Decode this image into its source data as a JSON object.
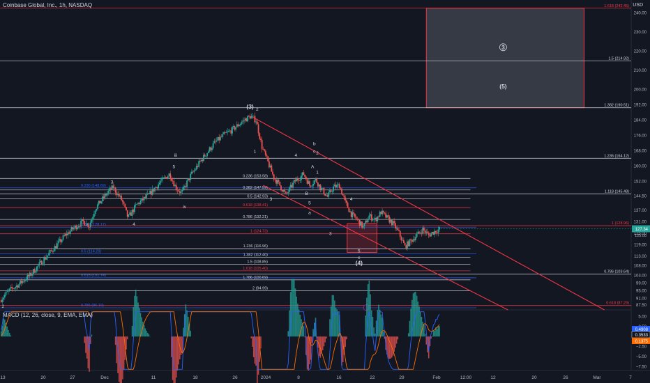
{
  "header": {
    "symbol_title": "Coinbase Global, Inc., 1h, NASDAQ",
    "currency": "USD",
    "macd_title": "MACD (12, 26, close, 9, EMA, EMA)"
  },
  "colors": {
    "background": "#131722",
    "fib_white": "#d1d4dc",
    "fib_red": "#f23645",
    "fib_blue": "#2962ff",
    "up_candle": "#26a69a",
    "down_candle": "#ef5350",
    "trendline": "#f23645",
    "macd_line": "#2962ff",
    "signal_line": "#ff6d00"
  },
  "chart_data": {
    "type": "candlestick",
    "title": "Coinbase Global, Inc., 1h, NASDAQ",
    "y_axis": {
      "unit": "USD",
      "ylim": [
        85,
        246
      ],
      "ticks": [
        87.5,
        91.0,
        95.0,
        99.0,
        103.0,
        108.0,
        113.0,
        119.0,
        125.0,
        131.0,
        137.0,
        144.5,
        152.0,
        160.0,
        168.0,
        176.0,
        184.0,
        192.0,
        200.0,
        210.0,
        220.0,
        230.0,
        240.0
      ],
      "tick_labels": [
        "87.50",
        "91.00",
        "95.00",
        "99.00",
        "103.00",
        "108.00",
        "113.00",
        "119.00",
        "125.00",
        "131.00",
        "137.00",
        "144.50",
        "152.00",
        "160.00",
        "168.00",
        "176.00",
        "184.00",
        "192.00",
        "200.00",
        "210.00",
        "220.00",
        "230.00",
        "240.00"
      ]
    },
    "x_axis": {
      "tick_labels": [
        "13",
        "20",
        "27",
        "Dec",
        "11",
        "18",
        "26",
        "2024",
        "8",
        "16",
        "22",
        "29",
        "Feb",
        "12:00",
        "12",
        "20",
        "26",
        "Mar",
        "7"
      ]
    },
    "current_price": {
      "value": 127.34,
      "label": "127.34",
      "secondary_label": "125.00"
    },
    "price_path": [
      {
        "t": 0,
        "p": 90
      },
      {
        "t": 1.5,
        "p": 95
      },
      {
        "t": 3,
        "p": 98
      },
      {
        "t": 5,
        "p": 103
      },
      {
        "t": 7,
        "p": 110
      },
      {
        "t": 9,
        "p": 117
      },
      {
        "t": 11,
        "p": 124
      },
      {
        "t": 12.5,
        "p": 128
      },
      {
        "t": 14,
        "p": 131
      },
      {
        "t": 15,
        "p": 129
      },
      {
        "t": 16,
        "p": 138
      },
      {
        "t": 18,
        "p": 146
      },
      {
        "t": 19,
        "p": 149
      },
      {
        "t": 20.5,
        "p": 142
      },
      {
        "t": 21.5,
        "p": 133
      },
      {
        "t": 23,
        "p": 140
      },
      {
        "t": 25,
        "p": 145
      },
      {
        "t": 27,
        "p": 152
      },
      {
        "t": 28.5,
        "p": 156
      },
      {
        "t": 29.5,
        "p": 149
      },
      {
        "t": 30.5,
        "p": 146
      },
      {
        "t": 32,
        "p": 155
      },
      {
        "t": 34,
        "p": 164
      },
      {
        "t": 36,
        "p": 172
      },
      {
        "t": 37.5,
        "p": 176
      },
      {
        "t": 39,
        "p": 179
      },
      {
        "t": 41,
        "p": 184
      },
      {
        "t": 42,
        "p": 186
      },
      {
        "t": 43,
        "p": 184
      },
      {
        "t": 44,
        "p": 170
      },
      {
        "t": 45,
        "p": 162
      },
      {
        "t": 46,
        "p": 154
      },
      {
        "t": 47,
        "p": 150
      },
      {
        "t": 48,
        "p": 145
      },
      {
        "t": 49.5,
        "p": 152
      },
      {
        "t": 51,
        "p": 156
      },
      {
        "t": 52,
        "p": 150
      },
      {
        "t": 53,
        "p": 153
      },
      {
        "t": 54,
        "p": 148
      },
      {
        "t": 55,
        "p": 144
      },
      {
        "t": 56,
        "p": 149
      },
      {
        "t": 57,
        "p": 150
      },
      {
        "t": 58,
        "p": 141
      },
      {
        "t": 59,
        "p": 135
      },
      {
        "t": 60,
        "p": 132
      },
      {
        "t": 61,
        "p": 128
      },
      {
        "t": 62,
        "p": 134
      },
      {
        "t": 63,
        "p": 132
      },
      {
        "t": 64,
        "p": 136
      },
      {
        "t": 65,
        "p": 133
      },
      {
        "t": 66,
        "p": 130
      },
      {
        "t": 67,
        "p": 125
      },
      {
        "t": 68,
        "p": 118
      },
      {
        "t": 69,
        "p": 121
      },
      {
        "t": 70,
        "p": 124
      },
      {
        "t": 71,
        "p": 127
      },
      {
        "t": 72,
        "p": 124
      },
      {
        "t": 73,
        "p": 126
      },
      {
        "t": 74,
        "p": 127.34
      }
    ],
    "fib_levels": [
      {
        "group": "blue",
        "ratio": "0.236",
        "label": "0.236 (148.69)",
        "value": 148.69,
        "side": "left"
      },
      {
        "group": "blue",
        "ratio": "0.382",
        "label": "0.382 (128.17)",
        "value": 128.17,
        "side": "left"
      },
      {
        "group": "blue",
        "ratio": "0.5",
        "label": "0.5 (114.29)",
        "value": 114.29,
        "side": "left"
      },
      {
        "group": "blue",
        "ratio": "0.618",
        "label": "0.618 (101.74)",
        "value": 101.74,
        "side": "left"
      },
      {
        "group": "blue",
        "ratio": "0.786",
        "label": "0.786 (86.10)",
        "value": 86.1,
        "side": "left"
      },
      {
        "group": "white",
        "ratio": "0.236",
        "label": "0.236 (153.58)",
        "value": 153.58,
        "side": "mid"
      },
      {
        "group": "white",
        "ratio": "0.382",
        "label": "0.382 (147.59)",
        "value": 147.59,
        "side": "mid"
      },
      {
        "group": "white",
        "ratio": "0.5",
        "label": "0.5 (142.93)",
        "value": 142.93,
        "side": "mid"
      },
      {
        "group": "red",
        "ratio": "0.618",
        "label": "0.618 (138.41)",
        "value": 138.41,
        "side": "mid"
      },
      {
        "group": "white",
        "ratio": "0.786",
        "label": "0.786 (132.21)",
        "value": 132.21,
        "side": "mid"
      },
      {
        "group": "red",
        "ratio": "1",
        "label": "1 (124.73)",
        "value": 124.73,
        "side": "mid"
      },
      {
        "group": "white",
        "ratio": "1.236",
        "label": "1.236 (116.96)",
        "value": 116.96,
        "side": "mid"
      },
      {
        "group": "white",
        "ratio": "1.382",
        "label": "1.382 (112.40)",
        "value": 112.4,
        "side": "mid"
      },
      {
        "group": "white",
        "ratio": "1.5",
        "label": "1.5 (108.85)",
        "value": 108.85,
        "side": "mid"
      },
      {
        "group": "red",
        "ratio": "1.618",
        "label": "1.618 (105.40)",
        "value": 105.4,
        "side": "mid"
      },
      {
        "group": "white",
        "ratio": "1.786",
        "label": "1.786 (100.69)",
        "value": 100.69,
        "side": "mid"
      },
      {
        "group": "white",
        "ratio": "2",
        "label": "2 (94.99)",
        "value": 94.99,
        "side": "mid"
      },
      {
        "group": "red",
        "ratio": "1.618",
        "label": "1.618 (242.45)",
        "value": 242.45,
        "side": "right"
      },
      {
        "group": "white",
        "ratio": "1.5",
        "label": "1.5 (214.92)",
        "value": 214.92,
        "side": "right"
      },
      {
        "group": "white",
        "ratio": "1.382",
        "label": "1.382 (190.51)",
        "value": 190.51,
        "side": "right"
      },
      {
        "group": "white",
        "ratio": "1.236",
        "label": "1.236 (164.12)",
        "value": 164.12,
        "side": "right"
      },
      {
        "group": "white",
        "ratio": "1.118",
        "label": "1.118 (145.48)",
        "value": 145.48,
        "side": "right"
      },
      {
        "group": "red",
        "ratio": "1",
        "label": "1 (128.96)",
        "value": 128.96,
        "side": "right"
      },
      {
        "group": "white",
        "ratio": "0.786",
        "label": "0.786 (103.64)",
        "value": 103.64,
        "side": "right"
      },
      {
        "group": "red",
        "ratio": "0.618",
        "label": "0.618 (87.29)",
        "value": 87.29,
        "side": "right"
      }
    ],
    "wave_labels": [
      {
        "text": "(3)",
        "t": 42,
        "p": 190
      },
      {
        "text": "2",
        "t": 43.2,
        "p": 189
      },
      {
        "text": "iii",
        "t": 29.5,
        "p": 165
      },
      {
        "text": "iv",
        "t": 31,
        "p": 138
      },
      {
        "text": "5",
        "t": 29.2,
        "p": 159
      },
      {
        "text": "3",
        "t": 18.8,
        "p": 151
      },
      {
        "text": "4",
        "t": 22.5,
        "p": 129
      },
      {
        "text": "2",
        "t": 0.5,
        "p": 86
      },
      {
        "text": "1",
        "t": 42.8,
        "p": 167
      },
      {
        "text": "3",
        "t": 45.5,
        "p": 142
      },
      {
        "text": "4",
        "t": 49.7,
        "p": 165
      },
      {
        "text": "A",
        "t": 52.5,
        "p": 159
      },
      {
        "text": "B",
        "t": 51.5,
        "p": 145
      },
      {
        "text": "5",
        "t": 52,
        "p": 140
      },
      {
        "text": "b",
        "t": 52.8,
        "p": 171
      },
      {
        "text": "c",
        "t": 52.8,
        "p": 167
      },
      {
        "text": "2",
        "t": 53.3,
        "p": 166
      },
      {
        "text": "1",
        "t": 53.3,
        "p": 156
      },
      {
        "text": "a",
        "t": 52,
        "p": 135
      },
      {
        "text": "4",
        "t": 59,
        "p": 142
      },
      {
        "text": "3",
        "t": 55.5,
        "p": 124
      },
      {
        "text": "5",
        "t": 60.3,
        "p": 115
      },
      {
        "text": "c",
        "t": 60.3,
        "p": 111.5
      },
      {
        "text": "(4)",
        "t": 60.3,
        "p": 108.5
      },
      {
        "text": "3",
        "t": 84.5,
        "p": 221,
        "circled": true
      },
      {
        "text": "(5)",
        "t": 84.5,
        "p": 200.5
      }
    ],
    "target_zones": [
      {
        "t0": 58.3,
        "t1": 63.3,
        "p_low": 115,
        "p_high": 130
      },
      {
        "t0": 71.6,
        "t1": 98.1,
        "p_low": 190.51,
        "p_high": 242.45
      }
    ],
    "trendlines": [
      {
        "t0": 42.2,
        "p0": 186,
        "t1": 101.5,
        "p1": 85
      },
      {
        "t0": 44.2,
        "p0": 150,
        "t1": 85.3,
        "p1": 85
      }
    ],
    "macd": {
      "title": "MACD (12, 26, close, 9, EMA, EMA)",
      "params": [
        12,
        26,
        9
      ],
      "values": {
        "macd": 0.4908,
        "signal": 0.3533,
        "histogram": 0.1375
      },
      "value_labels": [
        "0.4908",
        "0.3533",
        "0.1375"
      ],
      "y_ticks": [
        5.0,
        2.5,
        0,
        -2.5,
        -5.0,
        -7.5
      ],
      "y_tick_labels": [
        "5.00",
        "2.50",
        "",
        "−2.50",
        "−5.00",
        "−7.50"
      ],
      "ylim": [
        -8.5,
        6.5
      ]
    }
  }
}
